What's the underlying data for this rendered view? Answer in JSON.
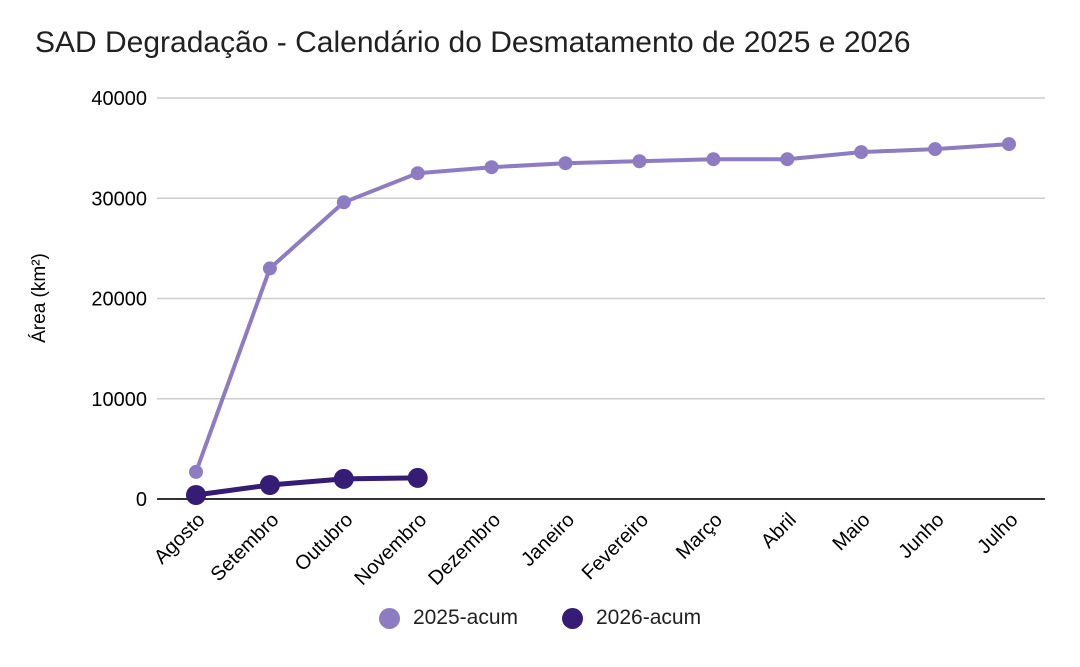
{
  "chart_data": {
    "type": "line",
    "title": "SAD Degradação - Calendário do Desmatamento de 2025 e 2026",
    "xlabel": "",
    "ylabel": "Área (km²)",
    "ylim": [
      0,
      40000
    ],
    "yticks": [
      0,
      10000,
      20000,
      30000,
      40000
    ],
    "grid": true,
    "legend_position": "bottom",
    "categories": [
      "Agosto",
      "Setembro",
      "Outubro",
      "Novembro",
      "Dezembro",
      "Janeiro",
      "Fevereiro",
      "Março",
      "Abril",
      "Maio",
      "Junho",
      "Julho"
    ],
    "series": [
      {
        "name": "2025-acum",
        "color": "#8e7cc3",
        "line_width": 4,
        "point_radius": 7,
        "values": [
          2700,
          23000,
          29600,
          32500,
          33100,
          33500,
          33700,
          33900,
          33900,
          34600,
          34900,
          35400
        ]
      },
      {
        "name": "2026-acum",
        "color": "#351c75",
        "line_width": 5,
        "point_radius": 10,
        "values": [
          400,
          1400,
          2000,
          2100,
          null,
          null,
          null,
          null,
          null,
          null,
          null,
          null
        ]
      }
    ]
  },
  "colors": {
    "background": "#ffffff",
    "gridline": "#cccccc",
    "axis_line": "#333333",
    "tick_text": "#000000",
    "title_text": "#212121"
  }
}
